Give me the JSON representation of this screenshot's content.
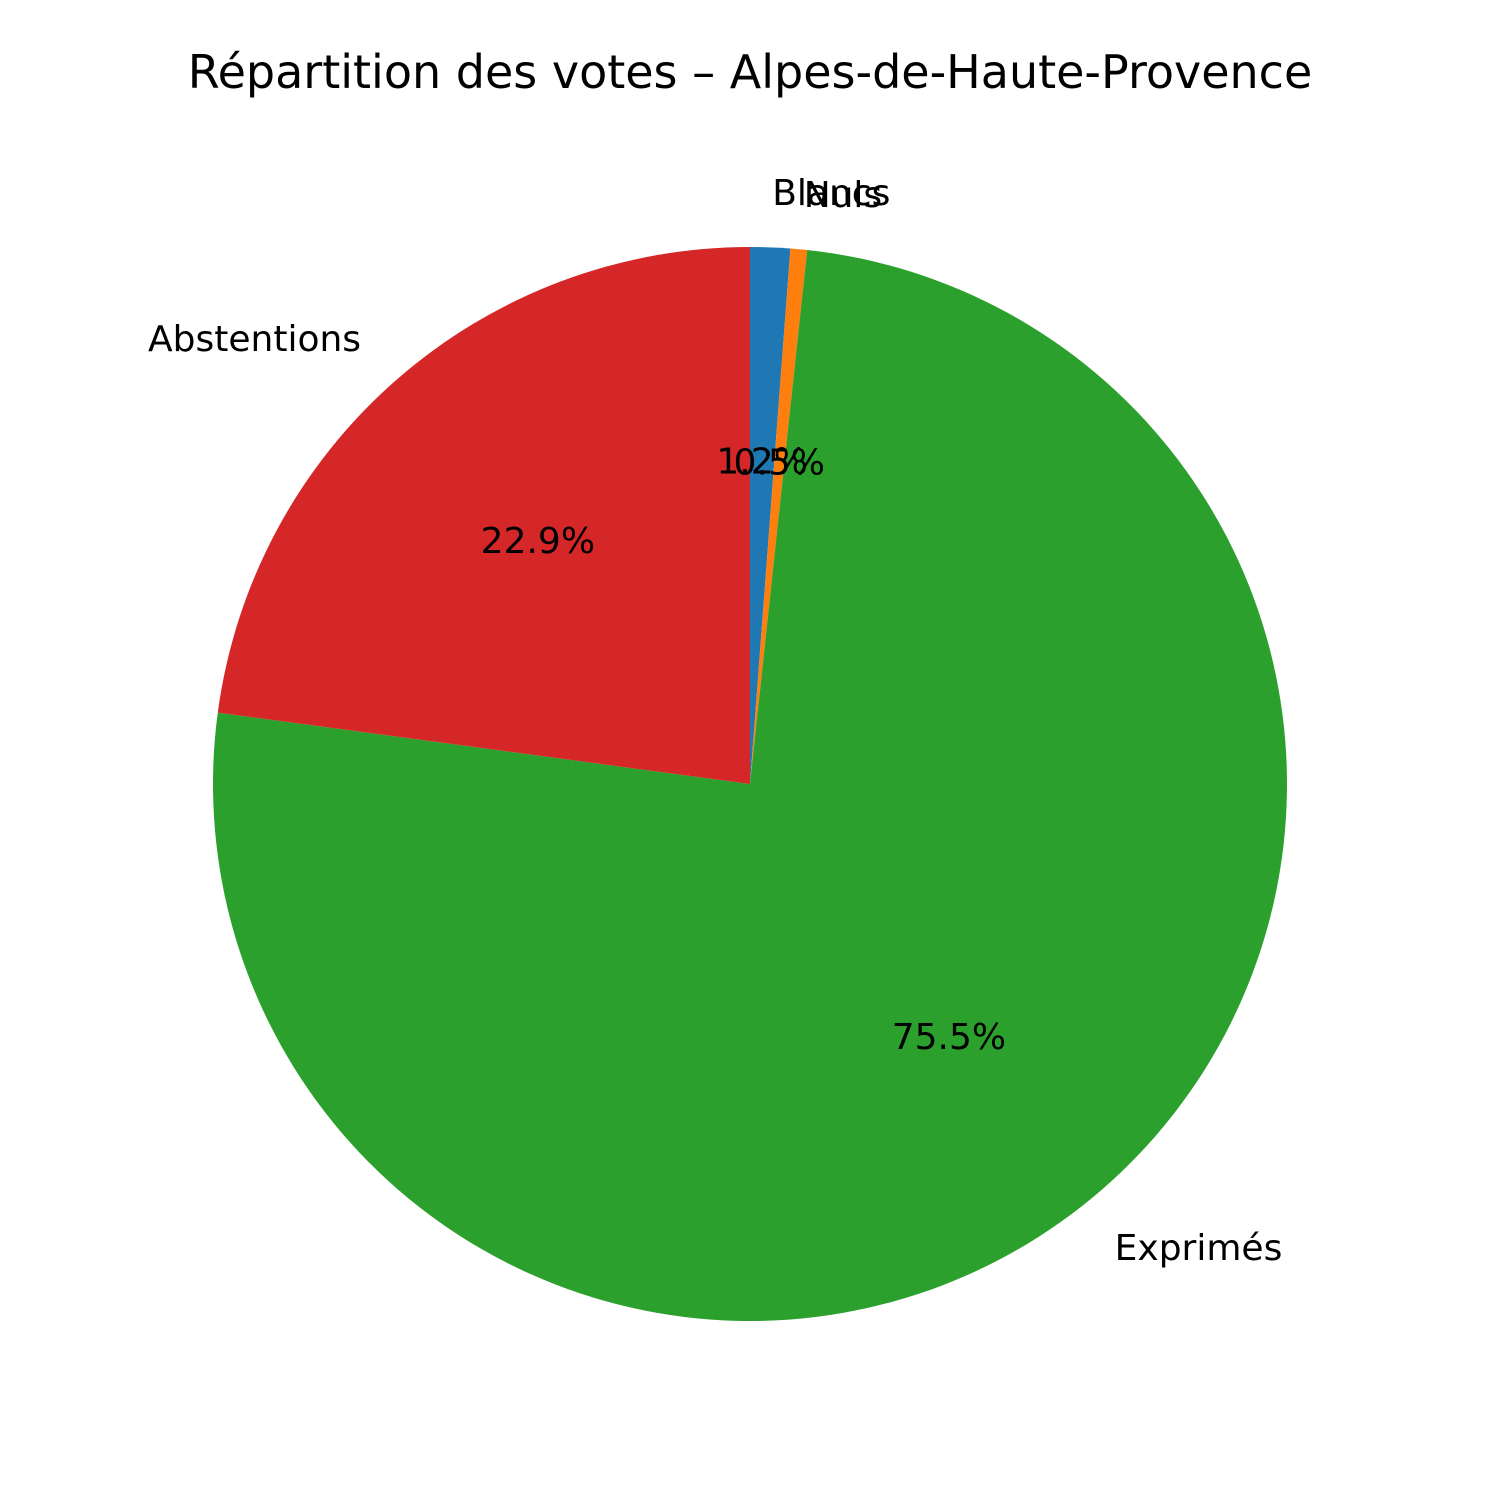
{
  "chart_data": {
    "type": "pie",
    "title": "Répartition des votes – Alpes-de-Haute-Provence",
    "start_angle_deg": 90,
    "direction": "clockwise",
    "slices": [
      {
        "label": "Blancs",
        "value": 1.2,
        "pct_label": "1.2%",
        "color": "#1f77b4"
      },
      {
        "label": "Nuls",
        "value": 0.5,
        "pct_label": "0.5%",
        "color": "#ff7f0e"
      },
      {
        "label": "Exprimés",
        "value": 75.5,
        "pct_label": "75.5%",
        "color": "#2ca02c"
      },
      {
        "label": "Abstentions",
        "value": 22.9,
        "pct_label": "22.9%",
        "color": "#d62728"
      }
    ]
  }
}
